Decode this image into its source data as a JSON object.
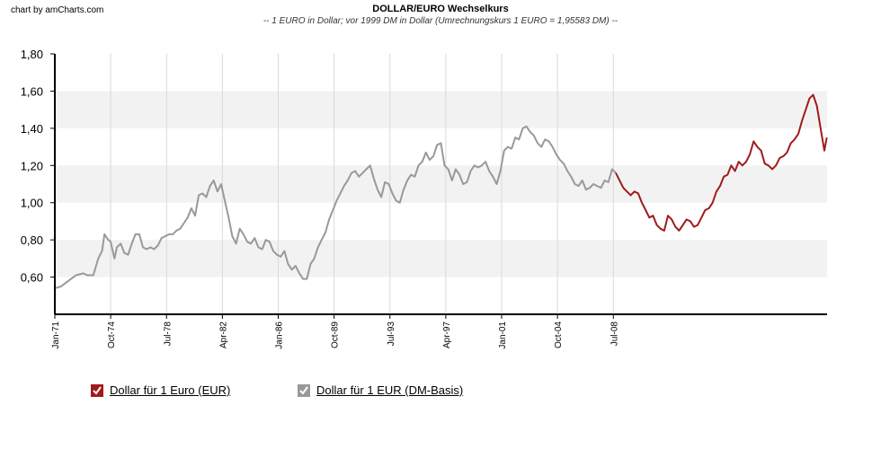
{
  "watermark": "chart by amCharts.com",
  "colors": {
    "eur": "#a01b1b",
    "dm": "#999999",
    "band": "#f2f2f2",
    "grid": "#d9d9d9",
    "axis": "#000000"
  },
  "chart_data": {
    "type": "line",
    "title": "DOLLAR/EURO Wechselkurs",
    "subtitle": "-- 1 EURO in Dollar; vor 1999 DM in Dollar (Umrechnungskurs 1 EURO = 1,95583 DM) --",
    "xlabel": "",
    "ylabel": "",
    "ylim": [
      0.4,
      1.8
    ],
    "y_ticks": [
      "0,60",
      "0,80",
      "1,00",
      "1,20",
      "1,40",
      "1,60",
      "1,80"
    ],
    "x_ticks": [
      "Jan-71",
      "Oct-74",
      "Jul-78",
      "Apr-82",
      "Jan-86",
      "Oct-89",
      "Jul-93",
      "Apr-97",
      "Jan-01",
      "Oct-04",
      "Jul-08"
    ],
    "grid": true,
    "legend_position": "bottom-left",
    "series": [
      {
        "name": "Dollar für 1 EUR (DM-Basis)",
        "key": "dm",
        "points": [
          [
            "1971-01",
            0.54
          ],
          [
            "1971-06",
            0.55
          ],
          [
            "1971-12",
            0.58
          ],
          [
            "1972-06",
            0.61
          ],
          [
            "1972-12",
            0.62
          ],
          [
            "1973-03",
            0.61
          ],
          [
            "1973-08",
            0.61
          ],
          [
            "1973-12",
            0.7
          ],
          [
            "1974-03",
            0.74
          ],
          [
            "1974-05",
            0.83
          ],
          [
            "1974-08",
            0.8
          ],
          [
            "1974-10",
            0.79
          ],
          [
            "1975-01",
            0.7
          ],
          [
            "1975-03",
            0.76
          ],
          [
            "1975-06",
            0.78
          ],
          [
            "1975-09",
            0.73
          ],
          [
            "1975-12",
            0.72
          ],
          [
            "1976-03",
            0.78
          ],
          [
            "1976-06",
            0.83
          ],
          [
            "1976-09",
            0.83
          ],
          [
            "1976-12",
            0.76
          ],
          [
            "1977-03",
            0.75
          ],
          [
            "1977-06",
            0.76
          ],
          [
            "1977-09",
            0.75
          ],
          [
            "1977-12",
            0.77
          ],
          [
            "1978-03",
            0.81
          ],
          [
            "1978-06",
            0.82
          ],
          [
            "1978-09",
            0.83
          ],
          [
            "1978-12",
            0.83
          ],
          [
            "1979-03",
            0.85
          ],
          [
            "1979-06",
            0.86
          ],
          [
            "1979-09",
            0.89
          ],
          [
            "1979-12",
            0.92
          ],
          [
            "1980-03",
            0.97
          ],
          [
            "1980-06",
            0.93
          ],
          [
            "1980-09",
            1.04
          ],
          [
            "1980-12",
            1.05
          ],
          [
            "1981-03",
            1.03
          ],
          [
            "1981-06",
            1.09
          ],
          [
            "1981-09",
            1.12
          ],
          [
            "1981-12",
            1.06
          ],
          [
            "1982-03",
            1.1
          ],
          [
            "1982-06",
            1.01
          ],
          [
            "1982-09",
            0.92
          ],
          [
            "1982-12",
            0.82
          ],
          [
            "1983-03",
            0.78
          ],
          [
            "1983-06",
            0.86
          ],
          [
            "1983-09",
            0.83
          ],
          [
            "1983-12",
            0.79
          ],
          [
            "1984-03",
            0.78
          ],
          [
            "1984-06",
            0.81
          ],
          [
            "1984-09",
            0.76
          ],
          [
            "1984-12",
            0.75
          ],
          [
            "1985-03",
            0.8
          ],
          [
            "1985-06",
            0.79
          ],
          [
            "1985-09",
            0.74
          ],
          [
            "1985-12",
            0.72
          ],
          [
            "1986-03",
            0.71
          ],
          [
            "1986-06",
            0.74
          ],
          [
            "1986-09",
            0.67
          ],
          [
            "1986-12",
            0.64
          ],
          [
            "1987-03",
            0.66
          ],
          [
            "1987-06",
            0.62
          ],
          [
            "1987-09",
            0.59
          ],
          [
            "1987-12",
            0.59
          ],
          [
            "1988-03",
            0.67
          ],
          [
            "1988-06",
            0.7
          ],
          [
            "1988-09",
            0.76
          ],
          [
            "1988-12",
            0.8
          ],
          [
            "1989-03",
            0.84
          ],
          [
            "1989-06",
            0.91
          ],
          [
            "1989-09",
            0.96
          ],
          [
            "1989-12",
            1.01
          ],
          [
            "1990-03",
            1.05
          ],
          [
            "1990-06",
            1.09
          ],
          [
            "1990-09",
            1.12
          ],
          [
            "1990-12",
            1.16
          ],
          [
            "1991-03",
            1.17
          ],
          [
            "1991-06",
            1.14
          ],
          [
            "1991-09",
            1.16
          ],
          [
            "1991-12",
            1.18
          ],
          [
            "1992-03",
            1.2
          ],
          [
            "1992-06",
            1.13
          ],
          [
            "1992-09",
            1.07
          ],
          [
            "1992-12",
            1.03
          ],
          [
            "1993-03",
            1.11
          ],
          [
            "1993-06",
            1.1
          ],
          [
            "1993-09",
            1.05
          ],
          [
            "1993-12",
            1.01
          ],
          [
            "1994-03",
            1.0
          ],
          [
            "1994-06",
            1.07
          ],
          [
            "1994-09",
            1.12
          ],
          [
            "1994-12",
            1.15
          ],
          [
            "1995-03",
            1.14
          ],
          [
            "1995-06",
            1.2
          ],
          [
            "1995-09",
            1.22
          ],
          [
            "1995-12",
            1.27
          ],
          [
            "1996-03",
            1.23
          ],
          [
            "1996-06",
            1.25
          ],
          [
            "1996-09",
            1.31
          ],
          [
            "1996-12",
            1.32
          ],
          [
            "1997-03",
            1.2
          ],
          [
            "1997-06",
            1.18
          ],
          [
            "1997-09",
            1.12
          ],
          [
            "1997-12",
            1.18
          ],
          [
            "1998-03",
            1.15
          ],
          [
            "1998-06",
            1.1
          ],
          [
            "1998-09",
            1.11
          ],
          [
            "1998-12",
            1.17
          ],
          [
            "1999-03",
            1.2
          ],
          [
            "1999-06",
            1.19
          ],
          [
            "1999-09",
            1.2
          ],
          [
            "1999-12",
            1.22
          ],
          [
            "2000-03",
            1.17
          ],
          [
            "2000-06",
            1.14
          ],
          [
            "2000-09",
            1.1
          ],
          [
            "2000-12",
            1.17
          ],
          [
            "2001-03",
            1.28
          ],
          [
            "2001-06",
            1.3
          ],
          [
            "2001-09",
            1.29
          ],
          [
            "2001-12",
            1.35
          ],
          [
            "2002-03",
            1.34
          ],
          [
            "2002-06",
            1.4
          ],
          [
            "2002-09",
            1.41
          ],
          [
            "2002-12",
            1.38
          ],
          [
            "2003-03",
            1.36
          ],
          [
            "2003-06",
            1.32
          ],
          [
            "2003-09",
            1.3
          ],
          [
            "2003-12",
            1.34
          ],
          [
            "2004-03",
            1.33
          ],
          [
            "2004-06",
            1.3
          ],
          [
            "2004-09",
            1.26
          ],
          [
            "2004-12",
            1.23
          ],
          [
            "2005-03",
            1.21
          ],
          [
            "2005-06",
            1.17
          ],
          [
            "2005-09",
            1.14
          ],
          [
            "2005-12",
            1.1
          ],
          [
            "2006-03",
            1.09
          ],
          [
            "2006-06",
            1.12
          ],
          [
            "2006-09",
            1.07
          ],
          [
            "2006-12",
            1.08
          ],
          [
            "2007-03",
            1.1
          ],
          [
            "2007-06",
            1.09
          ],
          [
            "2007-09",
            1.08
          ],
          [
            "2007-12",
            1.12
          ],
          [
            "2008-03",
            1.11
          ],
          [
            "2008-06",
            1.18
          ],
          [
            "2008-09",
            1.16
          ]
        ]
      },
      {
        "name": "Dollar für 1 Euro (EUR)",
        "key": "eur",
        "points": [
          [
            "2008-09",
            1.16
          ],
          [
            "2008-12",
            1.12
          ],
          [
            "2009-03",
            1.08
          ],
          [
            "2009-06",
            1.06
          ],
          [
            "2009-09",
            1.04
          ],
          [
            "2009-12",
            1.06
          ],
          [
            "2010-03",
            1.05
          ],
          [
            "2010-06",
            1.0
          ],
          [
            "2010-09",
            0.96
          ],
          [
            "2010-12",
            0.92
          ],
          [
            "2011-03",
            0.93
          ],
          [
            "2011-06",
            0.88
          ],
          [
            "2011-09",
            0.86
          ],
          [
            "2011-12",
            0.85
          ],
          [
            "2012-03",
            0.93
          ],
          [
            "2012-06",
            0.91
          ],
          [
            "2012-09",
            0.87
          ],
          [
            "2012-12",
            0.85
          ],
          [
            "2013-03",
            0.88
          ],
          [
            "2013-06",
            0.91
          ],
          [
            "2013-09",
            0.9
          ],
          [
            "2013-12",
            0.87
          ],
          [
            "2014-03",
            0.88
          ],
          [
            "2014-06",
            0.92
          ],
          [
            "2014-09",
            0.96
          ],
          [
            "2014-12",
            0.97
          ],
          [
            "2015-03",
            1.0
          ],
          [
            "2015-06",
            1.06
          ],
          [
            "2015-09",
            1.09
          ],
          [
            "2015-12",
            1.14
          ],
          [
            "2016-03",
            1.15
          ],
          [
            "2016-06",
            1.2
          ],
          [
            "2016-09",
            1.17
          ],
          [
            "2016-12",
            1.22
          ],
          [
            "2017-03",
            1.2
          ],
          [
            "2017-06",
            1.22
          ],
          [
            "2017-09",
            1.26
          ],
          [
            "2017-12",
            1.33
          ],
          [
            "2018-03",
            1.3
          ],
          [
            "2018-06",
            1.28
          ],
          [
            "2018-09",
            1.21
          ],
          [
            "2018-12",
            1.2
          ],
          [
            "2019-03",
            1.18
          ],
          [
            "2019-06",
            1.2
          ],
          [
            "2019-09",
            1.24
          ],
          [
            "2019-12",
            1.25
          ],
          [
            "2020-03",
            1.27
          ],
          [
            "2020-06",
            1.32
          ],
          [
            "2020-09",
            1.34
          ],
          [
            "2020-12",
            1.37
          ],
          [
            "2021-03",
            1.44
          ],
          [
            "2021-06",
            1.5
          ],
          [
            "2021-09",
            1.56
          ],
          [
            "2021-12",
            1.58
          ],
          [
            "2022-03",
            1.52
          ],
          [
            "2022-06",
            1.4
          ],
          [
            "2022-09",
            1.28
          ],
          [
            "2022-11",
            1.35
          ]
        ]
      }
    ]
  },
  "legend": [
    {
      "label": "Dollar für 1 Euro (EUR)",
      "key": "eur"
    },
    {
      "label": "Dollar für 1 EUR (DM-Basis)",
      "key": "dm"
    }
  ]
}
